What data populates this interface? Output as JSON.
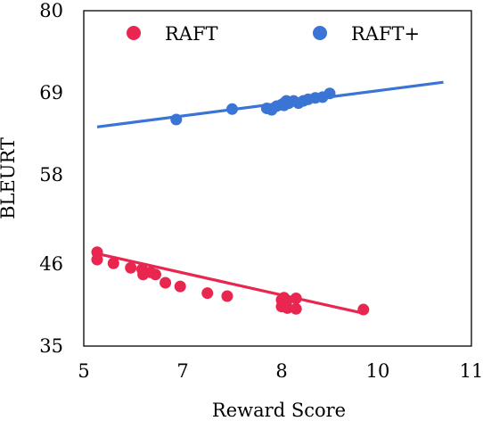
{
  "chart_data": {
    "type": "scatter",
    "xlabel": "Reward Score",
    "ylabel": "BLEURT",
    "xlim": [
      5,
      11
    ],
    "ylim": [
      35,
      80
    ],
    "xticks": [
      "5",
      "7",
      "8",
      "10",
      "11"
    ],
    "xtick_values": [
      5,
      7,
      8,
      10,
      11
    ],
    "yticks": [
      "35",
      "46",
      "58",
      "69",
      "80"
    ],
    "ytick_values": [
      35,
      46,
      58,
      69,
      80
    ],
    "legend_position": "top",
    "series": [
      {
        "name": "RAFT",
        "color": "#e8264f",
        "points": [
          [
            5.27,
            47.6
          ],
          [
            5.27,
            46.6
          ],
          [
            5.6,
            46.1
          ],
          [
            5.95,
            45.5
          ],
          [
            6.18,
            45.3
          ],
          [
            6.2,
            44.6
          ],
          [
            6.35,
            44.9
          ],
          [
            6.45,
            44.6
          ],
          [
            6.65,
            43.5
          ],
          [
            6.95,
            43.0
          ],
          [
            7.25,
            42.1
          ],
          [
            7.45,
            41.7
          ],
          [
            8.0,
            41.2
          ],
          [
            8.0,
            40.3
          ],
          [
            8.05,
            41.5
          ],
          [
            8.1,
            40.9
          ],
          [
            8.12,
            40.1
          ],
          [
            8.3,
            41.4
          ],
          [
            8.3,
            40.0
          ],
          [
            9.7,
            39.9
          ]
        ],
        "trend": {
          "x": [
            5.27,
            9.7
          ],
          "y": [
            47.4,
            39.4
          ]
        }
      },
      {
        "name": "RAFT+",
        "color": "#3a74d4",
        "points": [
          [
            6.87,
            65.4
          ],
          [
            7.5,
            66.8
          ],
          [
            7.85,
            66.9
          ],
          [
            7.9,
            66.7
          ],
          [
            7.95,
            67.2
          ],
          [
            8.0,
            67.4
          ],
          [
            8.05,
            67.6
          ],
          [
            8.05,
            67.3
          ],
          [
            8.1,
            67.9
          ],
          [
            8.15,
            67.6
          ],
          [
            8.25,
            67.9
          ],
          [
            8.35,
            67.6
          ],
          [
            8.45,
            67.9
          ],
          [
            8.55,
            68.1
          ],
          [
            8.7,
            68.3
          ],
          [
            8.85,
            68.4
          ],
          [
            9.0,
            68.9
          ]
        ],
        "trend": {
          "x": [
            5.27,
            10.7
          ],
          "y": [
            64.4,
            70.4
          ]
        }
      }
    ]
  }
}
